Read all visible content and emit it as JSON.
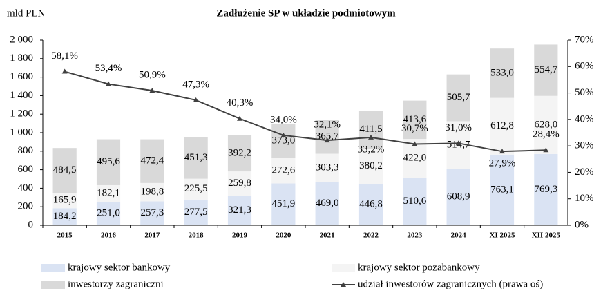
{
  "chart_data": {
    "type": "bar",
    "stacked": true,
    "title": "Zadłużenie SP w układzie podmiotowym",
    "y_label": "mld PLN",
    "categories": [
      "2015",
      "2016",
      "2017",
      "2018",
      "2019",
      "2020",
      "2021",
      "2022",
      "2023",
      "2024",
      "XI 2025",
      "XII 2025"
    ],
    "series": [
      {
        "name": "krajowy sektor bankowy",
        "color": "#dae3f3",
        "values": [
          184.2,
          251.0,
          257.3,
          277.5,
          321.3,
          451.9,
          469.0,
          446.8,
          510.6,
          608.9,
          763.1,
          769.3
        ],
        "value_labels": [
          "184,2",
          "251,0",
          "257,3",
          "277,5",
          "321,3",
          "451,9",
          "469,0",
          "446,8",
          "510,6",
          "608,9",
          "763,1",
          "769,3"
        ]
      },
      {
        "name": "krajowy sektor pozabankowy",
        "color": "#f4f4f4",
        "values": [
          165.9,
          182.1,
          198.8,
          225.5,
          259.8,
          272.6,
          303.3,
          380.2,
          422.0,
          514.7,
          612.8,
          628.0
        ],
        "value_labels": [
          "165,9",
          "182,1",
          "198,8",
          "225,5",
          "259,8",
          "272,6",
          "303,3",
          "380,2",
          "422,0",
          "514,7",
          "612,8",
          "628,0"
        ]
      },
      {
        "name": "inwestorzy zagraniczni",
        "color": "#d9d9d9",
        "values": [
          484.5,
          495.6,
          472.4,
          451.3,
          392.2,
          373.0,
          365.7,
          411.5,
          413.6,
          505.7,
          533.0,
          554.7
        ],
        "value_labels": [
          "484,5",
          "495,6",
          "472,4",
          "451,3",
          "392,2",
          "373,0",
          "365,7",
          "411,5",
          "413,6",
          "505,7",
          "533,0",
          "554,7"
        ]
      },
      {
        "name": "udział inwestorów zagranicznych (prawa oś)",
        "color": "#404040",
        "type": "line",
        "axis": "y2",
        "values": [
          58.1,
          53.4,
          50.9,
          47.3,
          40.3,
          34.0,
          32.1,
          33.2,
          30.7,
          31.0,
          27.9,
          28.4
        ],
        "value_labels": [
          "58,1%",
          "53,4%",
          "50,9%",
          "47,3%",
          "40,3%",
          "34,0%",
          "32,1%",
          "33,2%",
          "30,7%",
          "31,0%",
          "27,9%",
          "28,4%"
        ]
      }
    ],
    "ylim": [
      0,
      2000
    ],
    "yticks": [
      0,
      200,
      400,
      600,
      800,
      {
        "value": 1000,
        "label": "1 000"
      },
      {
        "value": 1200,
        "label": "1 200"
      },
      {
        "value": 1400,
        "label": "1 400"
      },
      {
        "value": 1600,
        "label": "1 600"
      },
      {
        "value": 1800,
        "label": "1 800"
      },
      {
        "value": 2000,
        "label": "2 000"
      }
    ],
    "y2lim": [
      0,
      70
    ],
    "y2ticks": [
      {
        "value": 0,
        "label": "0%"
      },
      {
        "value": 10,
        "label": "10%"
      },
      {
        "value": 20,
        "label": "20%"
      },
      {
        "value": 30,
        "label": "30%"
      },
      {
        "value": 40,
        "label": "40%"
      },
      {
        "value": 50,
        "label": "50%"
      },
      {
        "value": 60,
        "label": "60%"
      },
      {
        "value": 70,
        "label": "70%"
      }
    ],
    "legend": "bottom"
  }
}
